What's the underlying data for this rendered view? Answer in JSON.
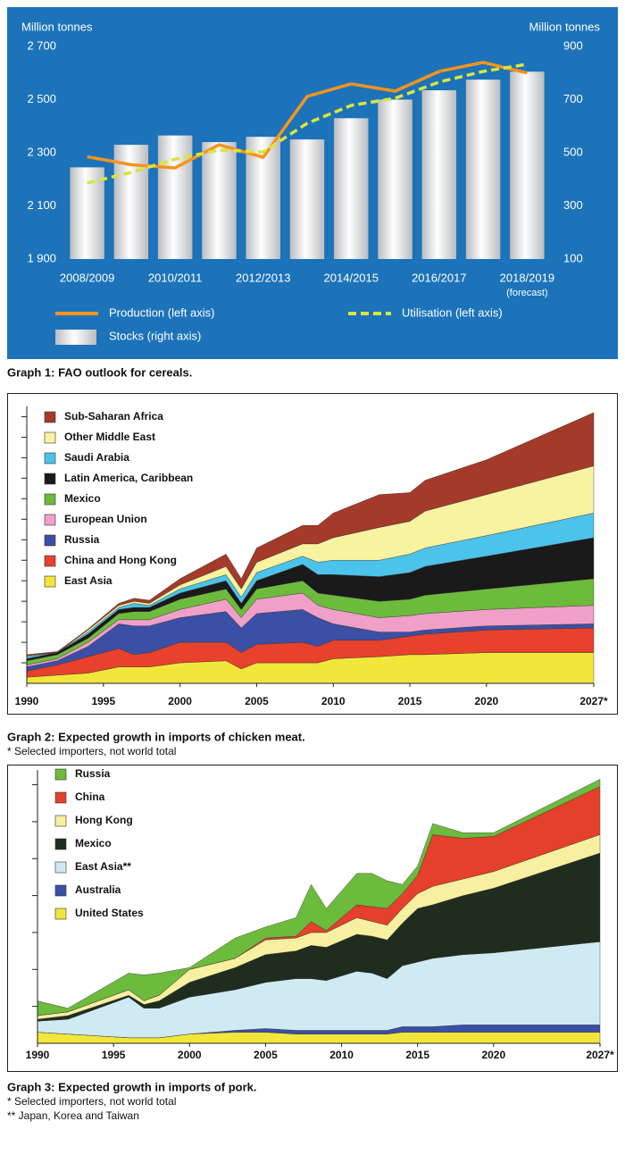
{
  "chart_data": [
    {
      "type": "combo",
      "background": "#1c73b9",
      "ylabel": "Million tonnes",
      "y2label": "Million tonnes",
      "categories": [
        "2008/2009",
        null,
        "2010/2011",
        null,
        "2012/2013",
        null,
        "2014/2015",
        null,
        "2016/2017",
        null,
        "2018/2019"
      ],
      "annotation": "(forecast)",
      "ylim": [
        1900,
        2700
      ],
      "yticks": [
        {
          "value": 1900,
          "label": "1 900"
        },
        {
          "value": 2100,
          "label": "2 100"
        },
        {
          "value": 2300,
          "label": "2 300"
        },
        {
          "value": 2500,
          "label": "2 500"
        },
        {
          "value": 2700,
          "label": "2 700"
        }
      ],
      "y2lim": [
        100,
        900
      ],
      "y2ticks": [
        100,
        300,
        500,
        700,
        900
      ],
      "series": [
        {
          "name": "Production (left axis)",
          "type": "line",
          "color": "#f7941d",
          "values": [
            2285,
            2255,
            2243,
            2330,
            2283,
            2512,
            2559,
            2532,
            2606,
            2640,
            2600
          ]
        },
        {
          "name": "Utilisation (left axis)",
          "type": "line",
          "line_style": "dashed",
          "color": "#d9e53c",
          "values": [
            2186,
            2226,
            2276,
            2310,
            2303,
            2411,
            2478,
            2505,
            2566,
            2606,
            2633
          ]
        },
        {
          "name": "Stocks (right axis)",
          "type": "bar",
          "axis": "y2",
          "color": "#b9bcc0",
          "values": [
            445,
            530,
            565,
            540,
            560,
            550,
            630,
            700,
            735,
            775,
            805
          ]
        }
      ],
      "caption": "Graph 1: FAO outlook for cereals."
    },
    {
      "type": "area",
      "x": [
        1990,
        1992,
        1994,
        1996,
        1997,
        1998,
        2000,
        2003,
        2004,
        2005,
        2008,
        2009,
        2010,
        2013,
        2015,
        2016,
        2020,
        2027
      ],
      "xlim": [
        1990,
        2027
      ],
      "xticks": [
        1990,
        1995,
        2000,
        2005,
        2010,
        2015,
        2020,
        {
          "value": 2027,
          "label": "2027*"
        }
      ],
      "ylim": [
        0,
        13.5
      ],
      "yticks": [
        1,
        2,
        3,
        4,
        5,
        6,
        7,
        8,
        9,
        10,
        11,
        12,
        13
      ],
      "series": [
        {
          "name": "East Asia",
          "color": "#f2e63a",
          "values": [
            0.3,
            0.4,
            0.5,
            0.8,
            0.8,
            0.8,
            1.0,
            1.1,
            0.7,
            1.0,
            1.0,
            1.0,
            1.2,
            1.3,
            1.4,
            1.4,
            1.5,
            1.5
          ]
        },
        {
          "name": "China and Hong Kong",
          "color": "#e8412c",
          "values": [
            0.3,
            0.5,
            0.8,
            0.9,
            0.6,
            0.7,
            1.0,
            0.9,
            0.8,
            0.9,
            1.0,
            0.8,
            0.9,
            0.8,
            0.9,
            1.0,
            1.1,
            1.2
          ]
        },
        {
          "name": "Russia",
          "color": "#3b4fa5",
          "values": [
            0.2,
            0.2,
            0.5,
            1.2,
            1.4,
            1.3,
            1.2,
            1.5,
            1.2,
            1.5,
            1.6,
            1.4,
            0.8,
            0.4,
            0.2,
            0.2,
            0.2,
            0.2
          ]
        },
        {
          "name": "European Union",
          "color": "#f0a0c8",
          "values": [
            0.1,
            0.1,
            0.2,
            0.2,
            0.3,
            0.3,
            0.4,
            0.6,
            0.5,
            0.7,
            0.8,
            0.6,
            0.7,
            0.7,
            0.8,
            0.8,
            0.8,
            0.9
          ]
        },
        {
          "name": "Mexico",
          "color": "#6dbb3c",
          "values": [
            0.2,
            0.2,
            0.2,
            0.3,
            0.4,
            0.4,
            0.5,
            0.5,
            0.4,
            0.5,
            0.6,
            0.6,
            0.7,
            0.8,
            0.8,
            0.9,
            1.0,
            1.3
          ]
        },
        {
          "name": "Latin America, Caribbean",
          "color": "#1a1a1a",
          "values": [
            0.1,
            0.1,
            0.2,
            0.2,
            0.2,
            0.2,
            0.3,
            0.4,
            0.3,
            0.4,
            0.8,
            0.9,
            1.0,
            1.2,
            1.3,
            1.4,
            1.6,
            2.0
          ]
        },
        {
          "name": "Saudi Arabia",
          "color": "#4cc3ea",
          "values": [
            0.1,
            0,
            0.1,
            0.1,
            0.2,
            0.1,
            0.2,
            0.3,
            0.3,
            0.4,
            0.4,
            0.6,
            0.7,
            0.8,
            0.9,
            0.9,
            1.0,
            1.2
          ]
        },
        {
          "name": "Other Middle East",
          "color": "#f7f3a0",
          "values": [
            0.05,
            0,
            0.1,
            0.1,
            0.1,
            0.1,
            0.2,
            0.4,
            0.4,
            0.5,
            0.6,
            0.9,
            1.1,
            1.6,
            1.6,
            1.8,
            2.0,
            2.3
          ]
        },
        {
          "name": "Sub-Saharan Africa",
          "color": "#a33a2a",
          "values": [
            0.05,
            0.05,
            0.05,
            0.1,
            0.15,
            0.15,
            0.3,
            0.6,
            0.5,
            0.7,
            0.9,
            0.9,
            1.2,
            1.6,
            1.4,
            1.5,
            1.7,
            2.6
          ]
        }
      ],
      "caption": "Graph 2: Expected growth in imports of chicken meat.",
      "notes": [
        "* Selected importers, not world total"
      ]
    },
    {
      "type": "area",
      "x": [
        1990,
        1992,
        1996,
        1997,
        1998,
        2000,
        2003,
        2005,
        2007,
        2008,
        2009,
        2011,
        2012,
        2013,
        2014,
        2015,
        2016,
        2018,
        2020,
        2027
      ],
      "xlim": [
        1990,
        2027
      ],
      "xticks": [
        1990,
        1995,
        2000,
        2005,
        2010,
        2015,
        2020,
        {
          "value": 2027,
          "label": "2027*"
        }
      ],
      "ylim": [
        0,
        7.4
      ],
      "yticks": [
        1,
        2,
        3,
        4,
        5,
        6,
        7
      ],
      "series": [
        {
          "name": "United States",
          "color": "#f2e63a",
          "values": [
            0.3,
            0.25,
            0.15,
            0.15,
            0.15,
            0.25,
            0.3,
            0.3,
            0.25,
            0.25,
            0.25,
            0.25,
            0.25,
            0.25,
            0.3,
            0.3,
            0.3,
            0.3,
            0.3,
            0.3
          ]
        },
        {
          "name": "Australia",
          "color": "#3b4fa5",
          "values": [
            0,
            0,
            0,
            0,
            0,
            0,
            0.05,
            0.1,
            0.1,
            0.1,
            0.1,
            0.1,
            0.1,
            0.1,
            0.15,
            0.15,
            0.15,
            0.2,
            0.2,
            0.2
          ]
        },
        {
          "name": "East Asia**",
          "color": "#cfeaf3",
          "values": [
            0.3,
            0.4,
            1.1,
            0.8,
            0.8,
            1.0,
            1.1,
            1.25,
            1.4,
            1.4,
            1.35,
            1.6,
            1.55,
            1.4,
            1.65,
            1.75,
            1.85,
            1.9,
            1.95,
            2.25
          ]
        },
        {
          "name": "Mexico",
          "color": "#1f2d1f",
          "values": [
            0.05,
            0.1,
            0.05,
            0.1,
            0.2,
            0.4,
            0.6,
            0.75,
            0.75,
            0.9,
            0.9,
            1.0,
            1.0,
            1.05,
            1.15,
            1.45,
            1.45,
            1.6,
            1.75,
            2.4
          ]
        },
        {
          "name": "Hong Kong",
          "color": "#f6f0a0",
          "values": [
            0.1,
            0.1,
            0.15,
            0.1,
            0.15,
            0.35,
            0.25,
            0.4,
            0.35,
            0.35,
            0.4,
            0.45,
            0.4,
            0.4,
            0.4,
            0.4,
            0.5,
            0.45,
            0.45,
            0.5
          ]
        },
        {
          "name": "China",
          "color": "#e4402b",
          "values": [
            0,
            0,
            0,
            0,
            0,
            0,
            0,
            0.05,
            0.05,
            0.3,
            0.05,
            0.35,
            0.4,
            0.45,
            0.4,
            0.5,
            1.4,
            1.1,
            0.95,
            1.3
          ]
        },
        {
          "name": "Russia",
          "color": "#6cbb3c",
          "values": [
            0.4,
            0.1,
            0.45,
            0.7,
            0.6,
            0.05,
            0.55,
            0.3,
            0.5,
            1.0,
            0.6,
            0.85,
            0.9,
            0.75,
            0.25,
            0.25,
            0.3,
            0.15,
            0.1,
            0.2
          ]
        }
      ],
      "caption": "Graph 3: Expected growth in imports of pork.",
      "notes": [
        "* Selected importers, not world total",
        "** Japan, Korea and Taiwan"
      ]
    }
  ]
}
